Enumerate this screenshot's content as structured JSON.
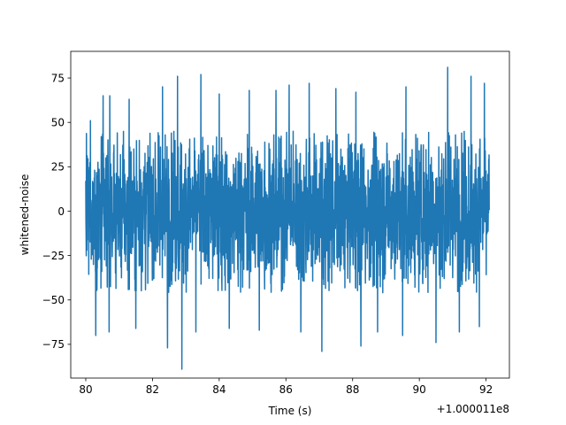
{
  "chart_data": {
    "type": "line",
    "title": "",
    "xlabel": "Time (s)",
    "ylabel": "whitened-noise",
    "x_offset_label": "+1.000011e8",
    "xlim": [
      79.55,
      92.7
    ],
    "ylim": [
      -94,
      90
    ],
    "xticks": [
      80,
      82,
      84,
      86,
      88,
      90,
      92
    ],
    "xtick_labels": [
      "80",
      "82",
      "84",
      "86",
      "88",
      "90",
      "92"
    ],
    "yticks": [
      -75,
      -50,
      -25,
      0,
      25,
      50,
      75
    ],
    "ytick_labels": [
      "−75",
      "−50",
      "−25",
      "0",
      "25",
      "50",
      "75"
    ],
    "grid": false,
    "line_color": "#1f77b4",
    "series": [
      {
        "x_start": 80.0,
        "x_end": 92.1,
        "sample_count": 2420,
        "envelope_upper": 45,
        "envelope_lower": -46,
        "peaks": [
          {
            "x": 80.14,
            "y": 51
          },
          {
            "x": 80.52,
            "y": 65
          },
          {
            "x": 80.72,
            "y": 65
          },
          {
            "x": 81.3,
            "y": 63
          },
          {
            "x": 82.3,
            "y": 70
          },
          {
            "x": 82.75,
            "y": 76
          },
          {
            "x": 83.45,
            "y": 77
          },
          {
            "x": 84.0,
            "y": 66
          },
          {
            "x": 84.9,
            "y": 68
          },
          {
            "x": 85.7,
            "y": 68
          },
          {
            "x": 86.1,
            "y": 71
          },
          {
            "x": 86.7,
            "y": 72
          },
          {
            "x": 87.5,
            "y": 69
          },
          {
            "x": 88.1,
            "y": 67
          },
          {
            "x": 89.6,
            "y": 70
          },
          {
            "x": 90.85,
            "y": 81
          },
          {
            "x": 91.55,
            "y": 76
          },
          {
            "x": 91.95,
            "y": 72
          }
        ],
        "troughs": [
          {
            "x": 80.3,
            "y": -70
          },
          {
            "x": 80.7,
            "y": -68
          },
          {
            "x": 81.5,
            "y": -66
          },
          {
            "x": 82.45,
            "y": -77
          },
          {
            "x": 82.88,
            "y": -89
          },
          {
            "x": 83.3,
            "y": -68
          },
          {
            "x": 84.3,
            "y": -66
          },
          {
            "x": 85.2,
            "y": -67
          },
          {
            "x": 86.45,
            "y": -68
          },
          {
            "x": 87.08,
            "y": -79
          },
          {
            "x": 88.25,
            "y": -76
          },
          {
            "x": 88.75,
            "y": -68
          },
          {
            "x": 89.5,
            "y": -70
          },
          {
            "x": 90.5,
            "y": -74
          },
          {
            "x": 91.2,
            "y": -68
          },
          {
            "x": 91.8,
            "y": -65
          }
        ]
      }
    ]
  }
}
